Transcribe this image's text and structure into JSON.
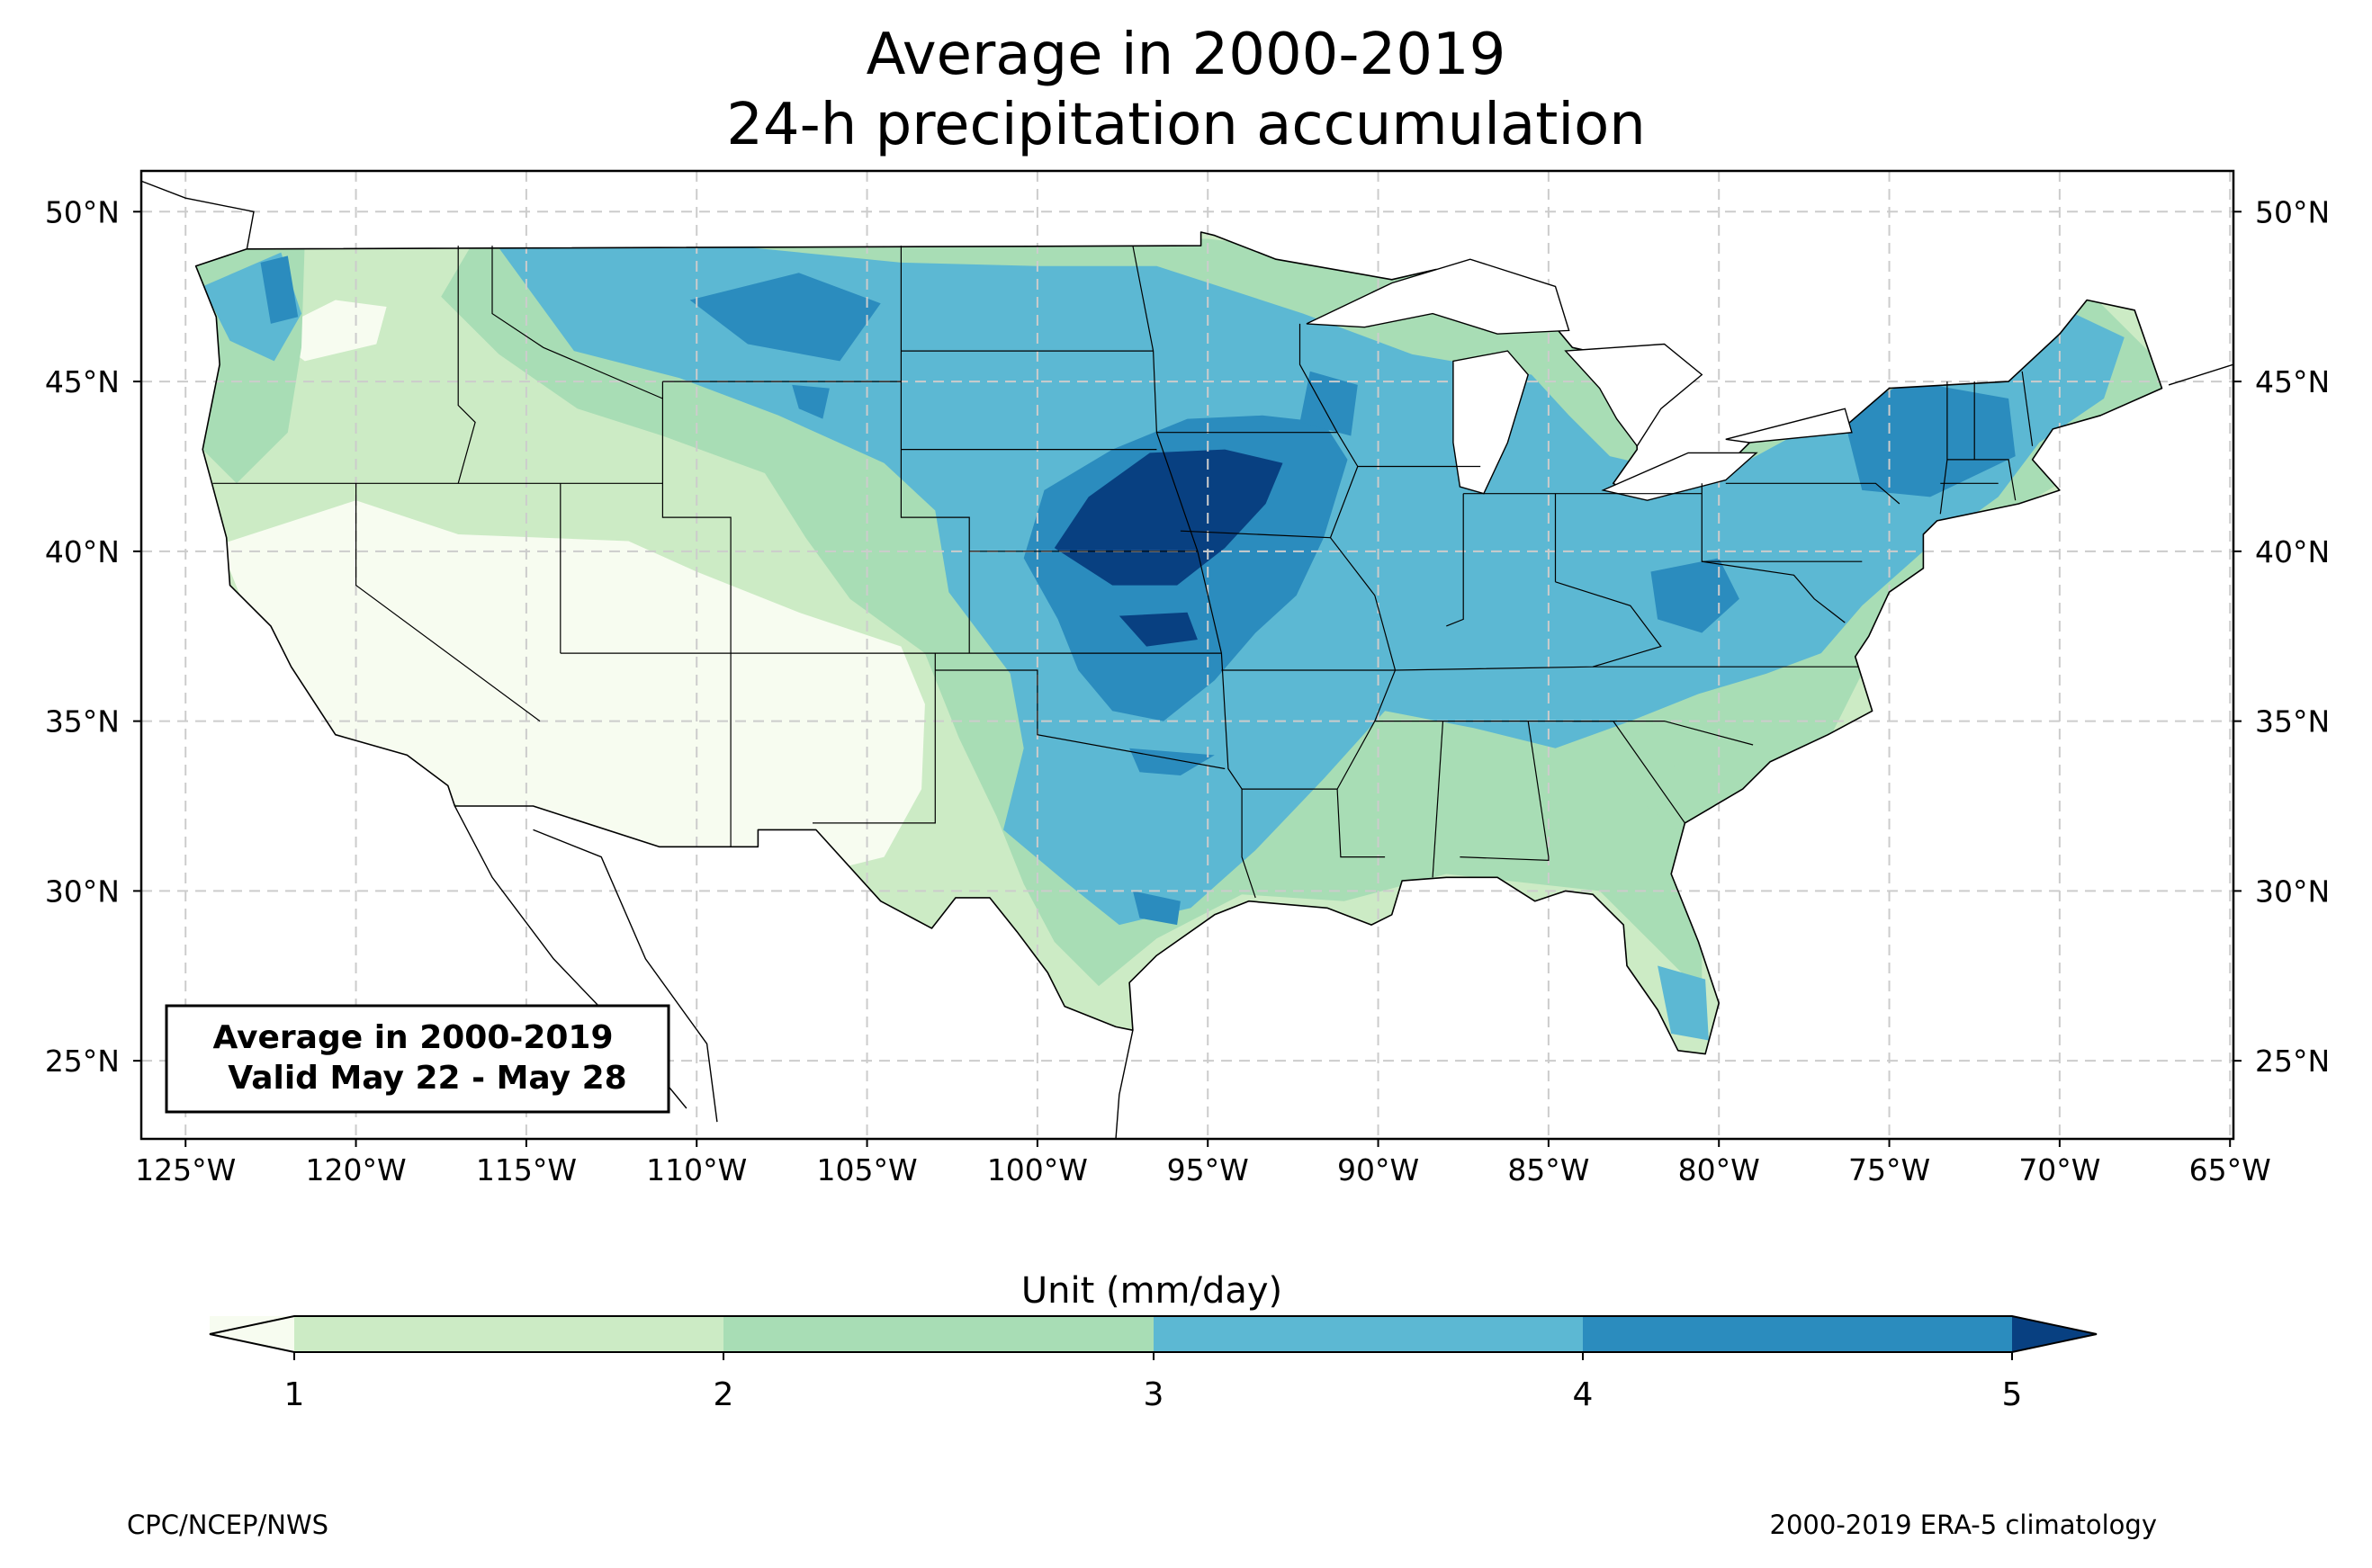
{
  "title": {
    "line1": "Average in 2000-2019",
    "line2": "24-h precipitation accumulation"
  },
  "map": {
    "lon_range": [
      -126.3,
      -64.9
    ],
    "lat_range": [
      22.7,
      51.2
    ],
    "lon_ticks": [
      {
        "lon": -125,
        "label": "125°W"
      },
      {
        "lon": -120,
        "label": "120°W"
      },
      {
        "lon": -115,
        "label": "115°W"
      },
      {
        "lon": -110,
        "label": "110°W"
      },
      {
        "lon": -105,
        "label": "105°W"
      },
      {
        "lon": -100,
        "label": "100°W"
      },
      {
        "lon": -95,
        "label": "95°W"
      },
      {
        "lon": -90,
        "label": "90°W"
      },
      {
        "lon": -85,
        "label": "85°W"
      },
      {
        "lon": -80,
        "label": "80°W"
      },
      {
        "lon": -75,
        "label": "75°W"
      },
      {
        "lon": -70,
        "label": "70°W"
      },
      {
        "lon": -65,
        "label": "65°W"
      }
    ],
    "lat_ticks": [
      {
        "lat": 50,
        "label": "50°N"
      },
      {
        "lat": 45,
        "label": "45°N"
      },
      {
        "lat": 40,
        "label": "40°N"
      },
      {
        "lat": 35,
        "label": "35°N"
      },
      {
        "lat": 30,
        "label": "30°N"
      },
      {
        "lat": 25,
        "label": "25°N"
      }
    ],
    "gridlines": "dashed",
    "info_box": {
      "line1": "Average in 2000-2019",
      "line2": "Valid May 22 - May 28"
    }
  },
  "colorbar": {
    "label": "Unit (mm/day)",
    "ticks": [
      "1",
      "2",
      "3",
      "4",
      "5"
    ],
    "colors": {
      "under": "#f7fcf0",
      "b1_2": "#ccebc5",
      "b2_3": "#a8ddb5",
      "b3_4": "#5cb8d3",
      "b4_5": "#2b8cbe",
      "over": "#084081"
    },
    "extend": "both"
  },
  "footer": {
    "left": "CPC/NCEP/NWS",
    "right": "2000-2019 ERA-5 climatology"
  }
}
